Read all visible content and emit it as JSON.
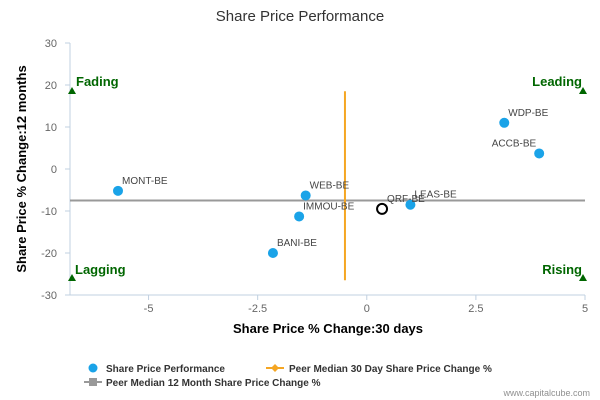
{
  "chart_data": {
    "type": "scatter",
    "title": "Share Price Performance",
    "xlabel": "Share Price % Change:30 days",
    "ylabel": "Share Price % Change:12 months",
    "xlim": [
      -6.8,
      5
    ],
    "ylim": [
      -30,
      30
    ],
    "x_ticks": [
      {
        "value": -5,
        "label": "-5"
      },
      {
        "value": -2.5,
        "label": "-2.5"
      },
      {
        "value": 0,
        "label": "0"
      },
      {
        "value": 2.5,
        "label": "2.5"
      },
      {
        "value": 5,
        "label": "5"
      }
    ],
    "y_ticks": [
      {
        "value": 30,
        "label": "30"
      },
      {
        "value": 20,
        "label": "20"
      },
      {
        "value": 10,
        "label": "10"
      },
      {
        "value": 0,
        "label": "0"
      },
      {
        "value": -10,
        "label": "-10"
      },
      {
        "value": -20,
        "label": "-20"
      },
      {
        "value": -30,
        "label": "-30"
      }
    ],
    "series": [
      {
        "name": "Share Price Performance",
        "color": "#1aa3e8",
        "points": [
          {
            "label": "WDP-BE",
            "x": 3.15,
            "y": 11.0
          },
          {
            "label": "ACCB-BE",
            "x": 3.95,
            "y": 3.7
          },
          {
            "label": "MONT-BE",
            "x": -5.7,
            "y": -5.2
          },
          {
            "label": "WEB-BE",
            "x": -1.4,
            "y": -6.3
          },
          {
            "label": "LEAS-BE",
            "x": 1.0,
            "y": -8.5
          },
          {
            "label": "IMMOU-BE",
            "x": -1.55,
            "y": -11.3
          },
          {
            "label": "BANI-BE",
            "x": -2.15,
            "y": -20.0
          }
        ]
      }
    ],
    "highlight": {
      "label": "QRF-BE",
      "x": 0.35,
      "y": -9.5
    },
    "peer_median_30d": {
      "name": "Peer Median 30 Day Share Price Change %",
      "value": -0.5,
      "y_from": -26.5,
      "y_to": 18.5,
      "color": "#f5a623"
    },
    "peer_median_12m": {
      "name": "Peer Median 12 Month Share Price Change %",
      "value": -7.5,
      "color": "#999999"
    },
    "quadrants": {
      "top_left": "Fading",
      "top_right": "Leading",
      "bottom_left": "Lagging",
      "bottom_right": "Rising",
      "color": "#006600"
    },
    "legend_position": "bottom-left",
    "grid": false
  },
  "credit": "www.capitalcube.com"
}
